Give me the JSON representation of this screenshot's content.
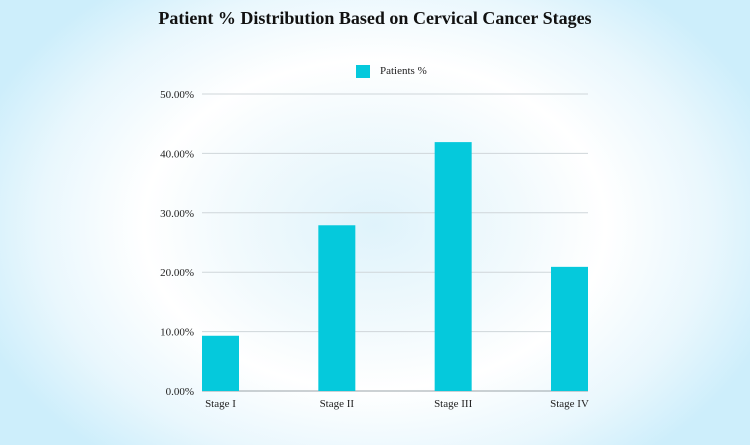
{
  "chart_data": {
    "type": "bar",
    "title": "Patient % Distribution Based on Cervical Cancer Stages",
    "categories": [
      "Stage I",
      "Stage II",
      "Stage III",
      "Stage IV"
    ],
    "series": [
      {
        "name": "Patients %",
        "values": [
          9.3,
          27.9,
          41.9,
          20.9
        ]
      }
    ],
    "ylim": [
      0,
      50
    ],
    "yticks": [
      0,
      10,
      20,
      30,
      40,
      50
    ],
    "ytick_labels": [
      "0.00%",
      "10.00%",
      "20.00%",
      "30.00%",
      "40.00%",
      "50.00%"
    ],
    "xlabel": "",
    "ylabel": "",
    "grid": true,
    "legend_position": "top-center",
    "colors": {
      "bar": "#05c9dc",
      "grid": "#cfd6da",
      "axis": "#9aa3a8"
    }
  }
}
